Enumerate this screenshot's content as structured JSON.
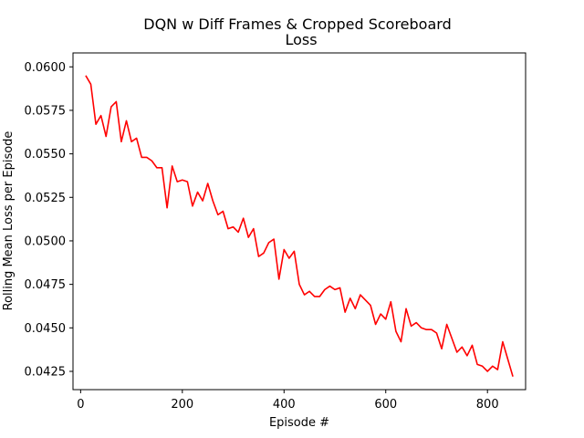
{
  "chart_data": {
    "type": "line",
    "title": "DQN w Diff Frames & Cropped Scoreboard",
    "subtitle": "Loss",
    "xlabel": "Episode #",
    "ylabel": "Rolling Mean Loss per Episode",
    "xlim": [
      -15,
      875
    ],
    "ylim": [
      0.04145,
      0.0608
    ],
    "xticks": [
      0,
      200,
      400,
      600,
      800
    ],
    "xtick_labels": [
      "0",
      "200",
      "400",
      "600",
      "800"
    ],
    "yticks": [
      0.0425,
      0.045,
      0.0475,
      0.05,
      0.0525,
      0.055,
      0.0575,
      0.06
    ],
    "ytick_labels": [
      "0.0425",
      "0.0450",
      "0.0475",
      "0.0500",
      "0.0525",
      "0.0550",
      "0.0575",
      "0.0600"
    ],
    "grid": false,
    "legend": "none",
    "series": [
      {
        "color": "#ff0000",
        "x": [
          10,
          20,
          30,
          40,
          50,
          60,
          70,
          80,
          90,
          100,
          110,
          120,
          130,
          140,
          150,
          160,
          170,
          180,
          190,
          200,
          210,
          220,
          230,
          240,
          250,
          260,
          270,
          280,
          290,
          300,
          310,
          320,
          330,
          340,
          350,
          360,
          370,
          380,
          390,
          400,
          410,
          420,
          430,
          440,
          450,
          460,
          470,
          480,
          490,
          500,
          510,
          520,
          530,
          540,
          550,
          560,
          570,
          580,
          590,
          600,
          610,
          620,
          630,
          640,
          650,
          660,
          670,
          680,
          690,
          700,
          710,
          720,
          730,
          740,
          750,
          760,
          770,
          780,
          790,
          800,
          810,
          820,
          830,
          840,
          850
        ],
        "y": [
          0.0595,
          0.059,
          0.0567,
          0.0572,
          0.056,
          0.0577,
          0.058,
          0.0557,
          0.0569,
          0.0557,
          0.0559,
          0.0548,
          0.0548,
          0.0546,
          0.0542,
          0.0542,
          0.0519,
          0.0543,
          0.0534,
          0.0535,
          0.0534,
          0.052,
          0.0528,
          0.0523,
          0.0533,
          0.0523,
          0.0515,
          0.0517,
          0.0507,
          0.0508,
          0.0505,
          0.0513,
          0.0502,
          0.0507,
          0.0491,
          0.0493,
          0.0499,
          0.0501,
          0.0478,
          0.0495,
          0.049,
          0.0494,
          0.0475,
          0.0469,
          0.0471,
          0.0468,
          0.0468,
          0.0472,
          0.0474,
          0.0472,
          0.0473,
          0.0459,
          0.0467,
          0.0461,
          0.0469,
          0.0466,
          0.0463,
          0.0452,
          0.0458,
          0.0455,
          0.0465,
          0.0448,
          0.0442,
          0.0461,
          0.0451,
          0.0453,
          0.045,
          0.0449,
          0.0449,
          0.0447,
          0.0438,
          0.0452,
          0.0444,
          0.0436,
          0.0439,
          0.0434,
          0.044,
          0.0429,
          0.0428,
          0.0425,
          0.0428,
          0.0426,
          0.0442,
          0.0432,
          0.0422
        ]
      }
    ]
  }
}
